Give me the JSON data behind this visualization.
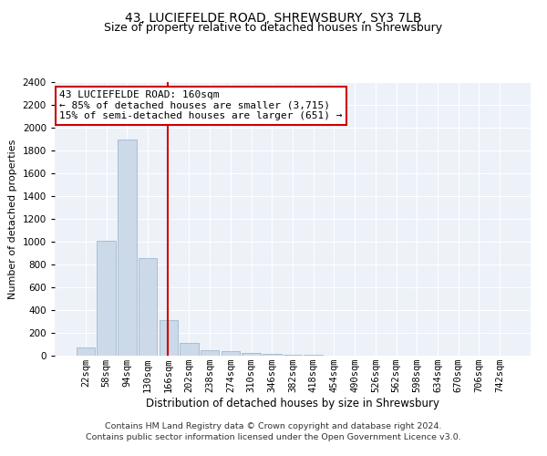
{
  "title1": "43, LUCIEFELDE ROAD, SHREWSBURY, SY3 7LB",
  "title2": "Size of property relative to detached houses in Shrewsbury",
  "xlabel": "Distribution of detached houses by size in Shrewsbury",
  "ylabel": "Number of detached properties",
  "categories": [
    "22sqm",
    "58sqm",
    "94sqm",
    "130sqm",
    "166sqm",
    "202sqm",
    "238sqm",
    "274sqm",
    "310sqm",
    "346sqm",
    "382sqm",
    "418sqm",
    "454sqm",
    "490sqm",
    "526sqm",
    "562sqm",
    "598sqm",
    "634sqm",
    "670sqm",
    "706sqm",
    "742sqm"
  ],
  "values": [
    70,
    1010,
    1900,
    860,
    310,
    110,
    45,
    40,
    25,
    15,
    8,
    5,
    4,
    3,
    2,
    2,
    1,
    1,
    1,
    1,
    1
  ],
  "bar_color": "#ccd9e8",
  "bar_edge_color": "#a0b8d0",
  "vline_color": "#cc0000",
  "vline_index": 4,
  "ylim": [
    0,
    2400
  ],
  "yticks": [
    0,
    200,
    400,
    600,
    800,
    1000,
    1200,
    1400,
    1600,
    1800,
    2000,
    2200,
    2400
  ],
  "annotation_title": "43 LUCIEFELDE ROAD: 160sqm",
  "annotation_line1": "← 85% of detached houses are smaller (3,715)",
  "annotation_line2": "15% of semi-detached houses are larger (651) →",
  "annotation_box_color": "#cc0000",
  "footnote1": "Contains HM Land Registry data © Crown copyright and database right 2024.",
  "footnote2": "Contains public sector information licensed under the Open Government Licence v3.0.",
  "bg_color": "#edf1f8",
  "title1_fontsize": 10,
  "title2_fontsize": 9,
  "xlabel_fontsize": 8.5,
  "ylabel_fontsize": 8,
  "tick_fontsize": 7.5,
  "annotation_fontsize": 8,
  "footnote_fontsize": 6.8,
  "grid_color": "#ffffff",
  "bar_width": 0.9
}
